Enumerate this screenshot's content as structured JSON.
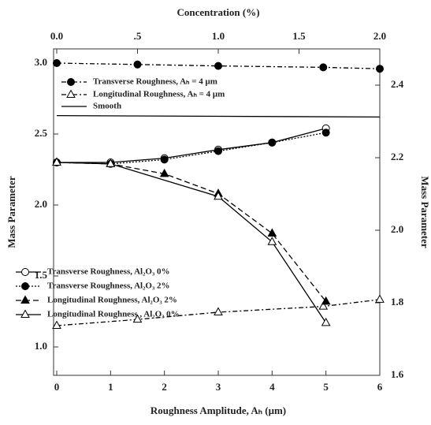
{
  "chart_data": {
    "type": "line",
    "xlabel": "Roughness Amplitude, Aₕ (μm)",
    "x2label": "Concentration (%)",
    "ylabel": "Mass Parameter",
    "y2label": "Mass Parameter",
    "xlim": [
      0,
      6
    ],
    "xticks": [
      0,
      1,
      2,
      3,
      4,
      5,
      6
    ],
    "x2lim": [
      0,
      2
    ],
    "x2ticks": [
      {
        "value": 0,
        "label": "0.0"
      },
      {
        "value": 0.5,
        "label": ".5"
      },
      {
        "value": 1,
        "label": "1.0"
      },
      {
        "value": 1.5,
        "label": "1.5"
      },
      {
        "value": 2,
        "label": "2.0"
      }
    ],
    "ylim": [
      0.8,
      3.1
    ],
    "yticks": [
      {
        "value": 1,
        "label": "1.0"
      },
      {
        "value": 1.5,
        "label": "1.5"
      },
      {
        "value": 2,
        "label": "2.0"
      },
      {
        "value": 2.5,
        "label": "2.5"
      },
      {
        "value": 3,
        "label": "3.0"
      }
    ],
    "y2lim": [
      1.6,
      2.5
    ],
    "y2ticks": [
      1.6,
      1.8,
      {
        "value": 2,
        "label": "2.0"
      },
      2.2,
      2.4
    ],
    "series": [
      {
        "name": "Transverse Roughness, Aₕ = 4 μm",
        "color": "#000000",
        "xaxis": "x2",
        "marker": "circle",
        "filled": true,
        "dash": "6,3,2,3",
        "x": [
          0,
          0.5,
          1,
          1.65,
          2
        ],
        "values": [
          3.0,
          2.99,
          2.98,
          2.97,
          2.96
        ]
      },
      {
        "name": "Longitudinal Roughness, Aₕ = 4 μm",
        "color": "#000000",
        "xaxis": "x2",
        "axis": "y2",
        "marker": "triangle",
        "filled": false,
        "dash": "6,3,2,3",
        "x": [
          0,
          0.5,
          1,
          1.65,
          2
        ],
        "values": [
          1.737,
          1.754,
          1.774,
          1.79,
          1.809
        ]
      },
      {
        "name": "Smooth",
        "color": "#000000",
        "xaxis": "x2",
        "marker": "none",
        "filled": false,
        "dash": "none",
        "x": [
          0,
          2
        ],
        "values": [
          2.63,
          2.62
        ]
      },
      {
        "name": "Transverse Roughness, Al₂O₃ 0%",
        "color": "#000000",
        "marker": "circle",
        "filled": false,
        "dash": "none",
        "x": [
          0,
          1,
          2,
          3,
          4,
          5
        ],
        "values": [
          2.3,
          2.3,
          2.33,
          2.39,
          2.44,
          2.54
        ]
      },
      {
        "name": "Transverse Roughness, Al₂O₃  2%",
        "color": "#000000",
        "marker": "circle",
        "filled": true,
        "dash": "2,2",
        "x": [
          0,
          1,
          2,
          3,
          4,
          5
        ],
        "values": [
          2.3,
          2.29,
          2.32,
          2.38,
          2.44,
          2.51
        ]
      },
      {
        "name": "Longitudinal Roughness, Al₂O₃ 2%",
        "color": "#000000",
        "marker": "triangle",
        "filled": true,
        "dash": "7,4",
        "x": [
          0,
          1,
          2,
          3,
          4,
          5
        ],
        "values": [
          2.3,
          2.29,
          2.22,
          2.08,
          1.8,
          1.32
        ]
      },
      {
        "name": "Longitudinal Roughness , Al₂O₃  0%",
        "color": "#000000",
        "marker": "triangle",
        "filled": false,
        "dash": "none",
        "x": [
          0,
          1,
          3,
          4,
          5
        ],
        "values": [
          2.3,
          2.29,
          2.06,
          1.74,
          1.17
        ]
      }
    ]
  }
}
